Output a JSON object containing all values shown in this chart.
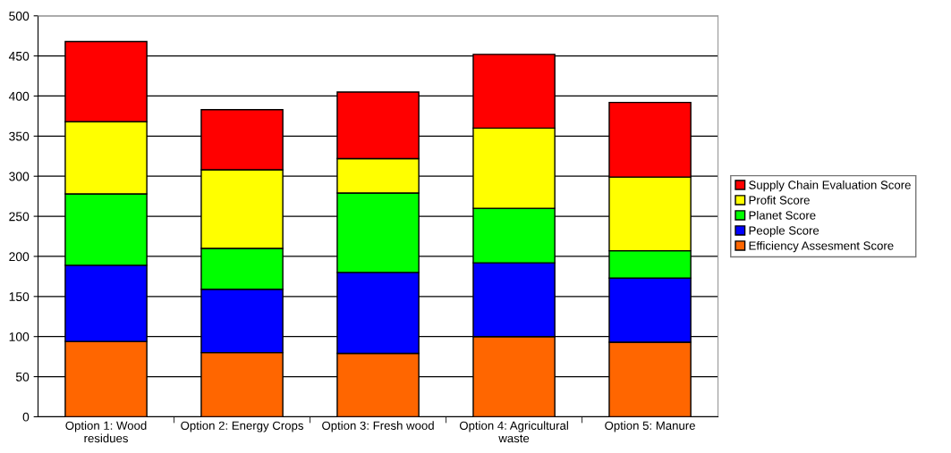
{
  "chart_data": {
    "type": "bar",
    "stacked": true,
    "categories": [
      "Option 1: Wood\nresidues",
      "Option 2: Energy Crops",
      "Option 3: Fresh wood",
      "Option 4: Agricultural\nwaste",
      "Option 5: Manure"
    ],
    "series": [
      {
        "name": "Efficiency Assesment Score",
        "color": "#ff6600",
        "values": [
          94,
          80,
          79,
          100,
          93
        ]
      },
      {
        "name": "People Score",
        "color": "#0000ff",
        "values": [
          95,
          79,
          101,
          92,
          80
        ]
      },
      {
        "name": "Planet Score",
        "color": "#00ff00",
        "values": [
          89,
          51,
          99,
          68,
          34
        ]
      },
      {
        "name": "Profit Score",
        "color": "#ffff00",
        "values": [
          90,
          98,
          43,
          100,
          92
        ]
      },
      {
        "name": "Supply Chain Evaluation Score",
        "color": "#ff0000",
        "values": [
          100,
          75,
          83,
          92,
          93
        ]
      }
    ],
    "ylim": [
      0,
      500
    ],
    "yticks": [
      0,
      50,
      100,
      150,
      200,
      250,
      300,
      350,
      400,
      450,
      500
    ],
    "grid": "y",
    "legend": "right"
  }
}
